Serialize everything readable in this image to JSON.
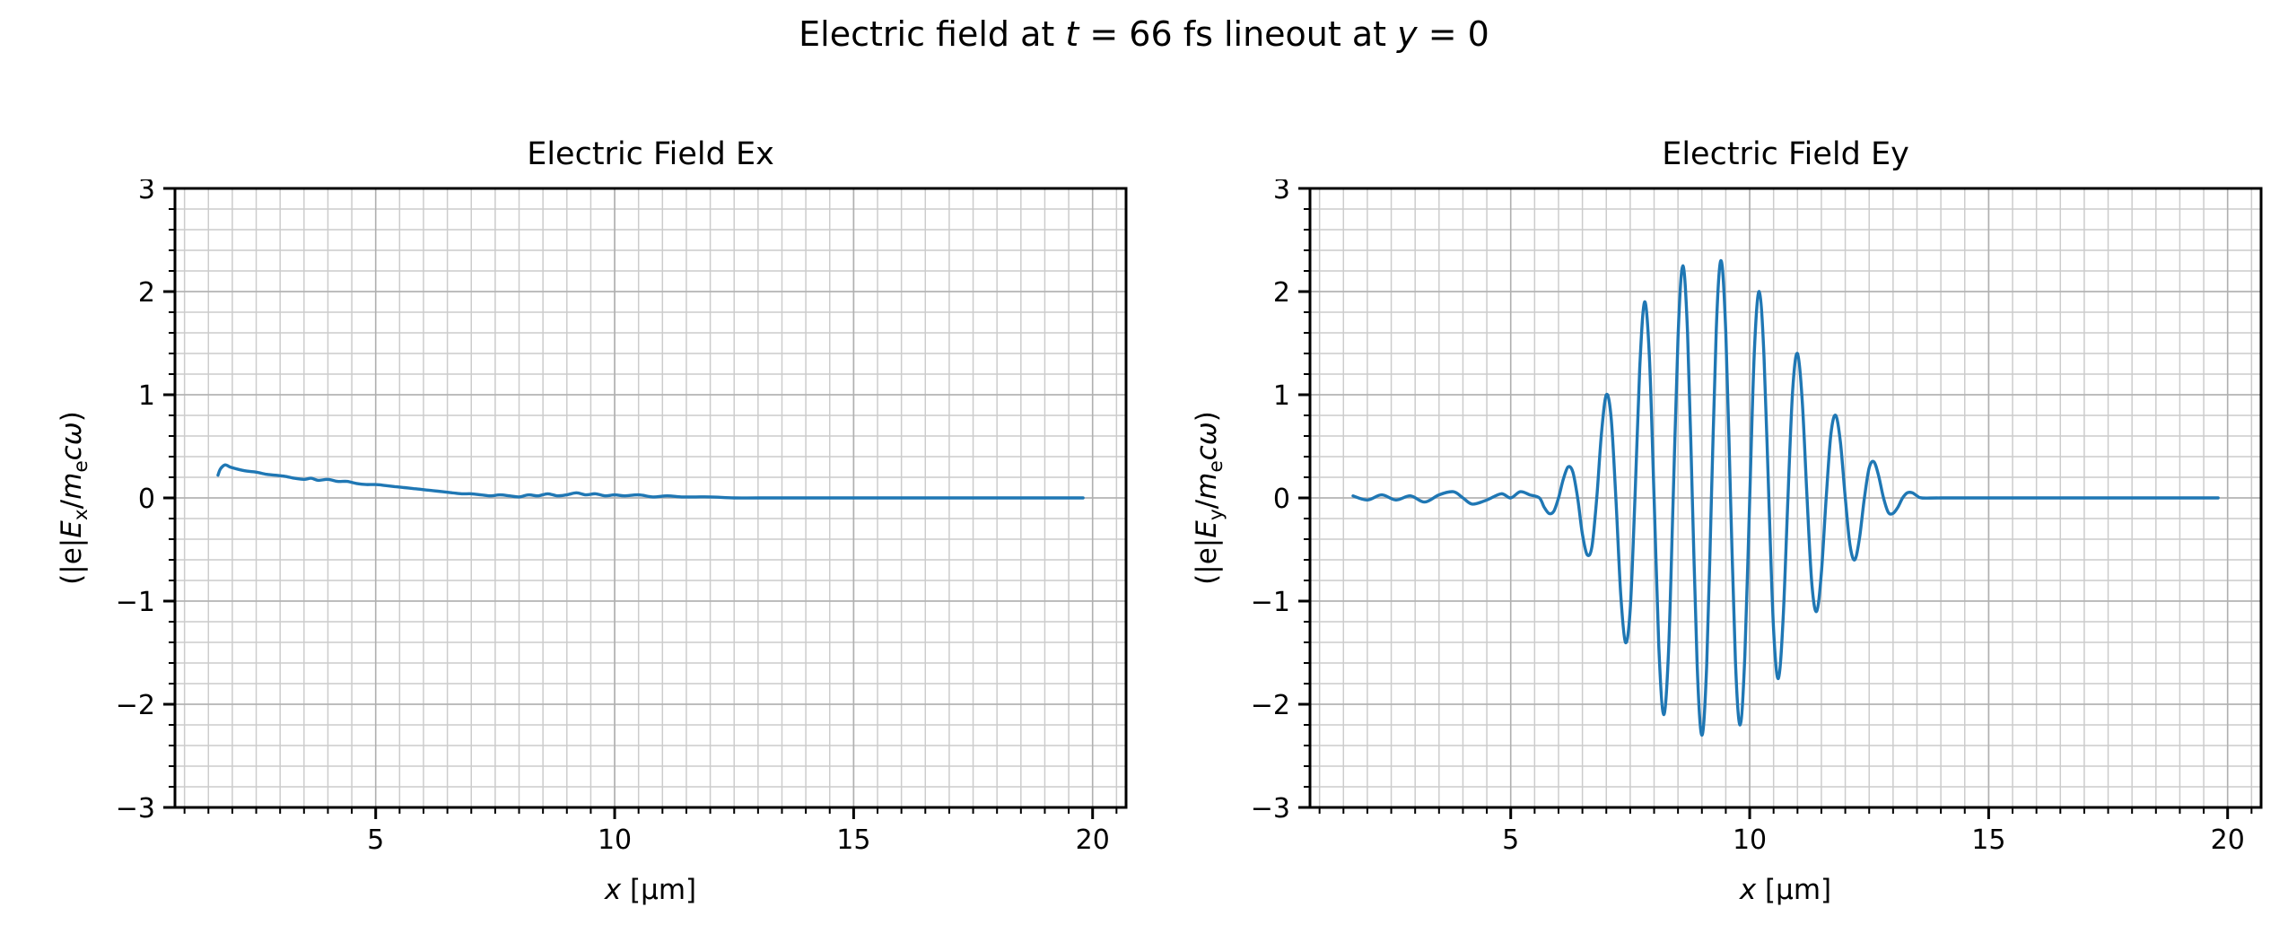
{
  "figure": {
    "title": "Electric field at *t* = 66 fs lineout at *y* = 0"
  },
  "colors": {
    "background": "#ffffff",
    "line": "#1f77b4",
    "grid_minor": "#cccccc",
    "grid_major": "#b0b0b0",
    "spine": "#000000",
    "text": "#000000"
  },
  "chart_data": [
    {
      "type": "line",
      "title": "Electric Field Ex",
      "xlabel": "*x* [μm]",
      "ylabel": "(|e|*E*_x/*m*_e*cω*)",
      "xlim": [
        0.8,
        20.7
      ],
      "ylim": [
        -3,
        3
      ],
      "xticks": [
        5,
        10,
        15,
        20
      ],
      "yticks": [
        -3,
        -2,
        -1,
        0,
        1,
        2,
        3
      ],
      "minor_x_step": 0.5,
      "minor_y_step": 0.2,
      "grid": true,
      "line_width": 3.4,
      "points": [
        [
          1.7,
          0.22
        ],
        [
          1.75,
          0.28
        ],
        [
          1.85,
          0.32
        ],
        [
          1.95,
          0.3
        ],
        [
          2.1,
          0.28
        ],
        [
          2.3,
          0.26
        ],
        [
          2.5,
          0.25
        ],
        [
          2.7,
          0.23
        ],
        [
          2.9,
          0.22
        ],
        [
          3.1,
          0.21
        ],
        [
          3.3,
          0.19
        ],
        [
          3.5,
          0.18
        ],
        [
          3.65,
          0.19
        ],
        [
          3.8,
          0.17
        ],
        [
          4.0,
          0.18
        ],
        [
          4.2,
          0.16
        ],
        [
          4.4,
          0.16
        ],
        [
          4.6,
          0.14
        ],
        [
          4.8,
          0.13
        ],
        [
          5.0,
          0.13
        ],
        [
          5.2,
          0.12
        ],
        [
          5.4,
          0.11
        ],
        [
          5.6,
          0.1
        ],
        [
          5.8,
          0.09
        ],
        [
          6.0,
          0.08
        ],
        [
          6.2,
          0.07
        ],
        [
          6.4,
          0.06
        ],
        [
          6.6,
          0.05
        ],
        [
          6.8,
          0.04
        ],
        [
          7.0,
          0.04
        ],
        [
          7.2,
          0.03
        ],
        [
          7.4,
          0.02
        ],
        [
          7.6,
          0.03
        ],
        [
          7.8,
          0.02
        ],
        [
          8.0,
          0.01
        ],
        [
          8.2,
          0.03
        ],
        [
          8.4,
          0.02
        ],
        [
          8.6,
          0.04
        ],
        [
          8.8,
          0.02
        ],
        [
          9.0,
          0.03
        ],
        [
          9.2,
          0.05
        ],
        [
          9.4,
          0.03
        ],
        [
          9.6,
          0.04
        ],
        [
          9.8,
          0.02
        ],
        [
          10.0,
          0.03
        ],
        [
          10.2,
          0.02
        ],
        [
          10.5,
          0.03
        ],
        [
          10.8,
          0.01
        ],
        [
          11.1,
          0.02
        ],
        [
          11.4,
          0.01
        ],
        [
          11.7,
          0.01
        ],
        [
          12.0,
          0.01
        ],
        [
          12.5,
          0.0
        ],
        [
          13.0,
          0.0
        ],
        [
          14.0,
          0.0
        ],
        [
          15.0,
          0.0
        ],
        [
          16.0,
          0.0
        ],
        [
          17.0,
          0.0
        ],
        [
          18.0,
          0.0
        ],
        [
          19.0,
          0.0
        ],
        [
          19.8,
          0.0
        ]
      ]
    },
    {
      "type": "line",
      "title": "Electric Field Ey",
      "xlabel": "*x* [μm]",
      "ylabel": "(|e|*E*_y/*m*_e*cω*)",
      "xlim": [
        0.8,
        20.7
      ],
      "ylim": [
        -3,
        3
      ],
      "xticks": [
        5,
        10,
        15,
        20
      ],
      "yticks": [
        -3,
        -2,
        -1,
        0,
        1,
        2,
        3
      ],
      "minor_x_step": 0.5,
      "minor_y_step": 0.2,
      "grid": true,
      "line_width": 3.4,
      "points": [
        [
          1.7,
          0.02
        ],
        [
          2.0,
          -0.02
        ],
        [
          2.3,
          0.03
        ],
        [
          2.6,
          -0.02
        ],
        [
          2.9,
          0.02
        ],
        [
          3.2,
          -0.04
        ],
        [
          3.5,
          0.03
        ],
        [
          3.8,
          0.06
        ],
        [
          4.0,
          0.0
        ],
        [
          4.2,
          -0.06
        ],
        [
          4.5,
          -0.02
        ],
        [
          4.8,
          0.04
        ],
        [
          5.0,
          0.0
        ],
        [
          5.2,
          0.06
        ],
        [
          5.4,
          0.03
        ],
        [
          5.6,
          0.0
        ],
        [
          5.7,
          -0.09
        ],
        [
          5.8,
          -0.15
        ],
        [
          5.9,
          -0.13
        ],
        [
          6.0,
          0.0
        ],
        [
          6.1,
          0.18
        ],
        [
          6.2,
          0.3
        ],
        [
          6.3,
          0.25
        ],
        [
          6.4,
          0.0
        ],
        [
          6.5,
          -0.35
        ],
        [
          6.6,
          -0.55
        ],
        [
          6.7,
          -0.47
        ],
        [
          6.8,
          0.0
        ],
        [
          6.9,
          0.63
        ],
        [
          7.0,
          1.0
        ],
        [
          7.1,
          0.78
        ],
        [
          7.2,
          0.0
        ],
        [
          7.3,
          -0.92
        ],
        [
          7.4,
          -1.4
        ],
        [
          7.5,
          -1.08
        ],
        [
          7.6,
          0.0
        ],
        [
          7.7,
          1.26
        ],
        [
          7.8,
          1.9
        ],
        [
          7.9,
          1.38
        ],
        [
          8.0,
          0.0
        ],
        [
          8.1,
          -1.45
        ],
        [
          8.2,
          -2.1
        ],
        [
          8.3,
          -1.51
        ],
        [
          8.4,
          0.0
        ],
        [
          8.5,
          1.56
        ],
        [
          8.6,
          2.25
        ],
        [
          8.7,
          1.6
        ],
        [
          8.8,
          0.0
        ],
        [
          8.9,
          -1.62
        ],
        [
          9.0,
          -2.3
        ],
        [
          9.1,
          -1.63
        ],
        [
          9.2,
          0.0
        ],
        [
          9.3,
          1.63
        ],
        [
          9.4,
          2.3
        ],
        [
          9.5,
          1.61
        ],
        [
          9.6,
          0.0
        ],
        [
          9.7,
          -1.57
        ],
        [
          9.8,
          -2.2
        ],
        [
          9.9,
          -1.52
        ],
        [
          10.0,
          0.0
        ],
        [
          10.1,
          1.45
        ],
        [
          10.2,
          2.0
        ],
        [
          10.3,
          1.37
        ],
        [
          10.4,
          0.0
        ],
        [
          10.5,
          -1.28
        ],
        [
          10.6,
          -1.75
        ],
        [
          10.7,
          -1.17
        ],
        [
          10.8,
          0.0
        ],
        [
          10.9,
          1.05
        ],
        [
          11.0,
          1.4
        ],
        [
          11.1,
          0.94
        ],
        [
          11.2,
          0.0
        ],
        [
          11.3,
          -0.83
        ],
        [
          11.4,
          -1.1
        ],
        [
          11.5,
          -0.73
        ],
        [
          11.6,
          0.0
        ],
        [
          11.7,
          0.62
        ],
        [
          11.8,
          0.8
        ],
        [
          11.9,
          0.53
        ],
        [
          12.0,
          0.0
        ],
        [
          12.1,
          -0.46
        ],
        [
          12.2,
          -0.6
        ],
        [
          12.3,
          -0.38
        ],
        [
          12.4,
          0.0
        ],
        [
          12.5,
          0.29
        ],
        [
          12.6,
          0.35
        ],
        [
          12.7,
          0.21
        ],
        [
          12.8,
          0.0
        ],
        [
          12.9,
          -0.14
        ],
        [
          13.0,
          -0.15
        ],
        [
          13.1,
          -0.09
        ],
        [
          13.2,
          0.0
        ],
        [
          13.3,
          0.05
        ],
        [
          13.4,
          0.05
        ],
        [
          13.5,
          0.02
        ],
        [
          13.6,
          0.0
        ],
        [
          14.0,
          0.0
        ],
        [
          15.0,
          0.0
        ],
        [
          16.0,
          0.0
        ],
        [
          17.0,
          0.0
        ],
        [
          18.0,
          0.0
        ],
        [
          19.0,
          0.0
        ],
        [
          19.8,
          0.0
        ]
      ]
    }
  ]
}
